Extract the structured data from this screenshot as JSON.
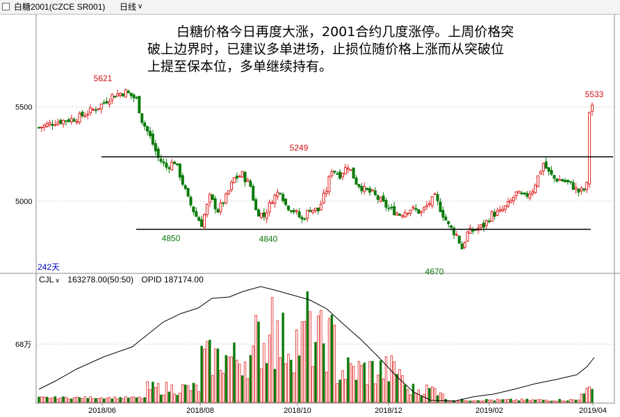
{
  "header": {
    "instrument": "白糖2001(CZCE SR001)",
    "period": "日线"
  },
  "annotation": {
    "lines": [
      "白糖价格今日再度大涨，2001合约几度涨停。上周价格突",
      "破上边界时，已建议多单进场，止损位随价格上涨而从突破位",
      "上提至保本位，多单继续持有。"
    ]
  },
  "price_panel": {
    "days_label": "242天"
  },
  "volume_panel": {
    "indicator": "CJL",
    "value": "163278.00(50:50)",
    "opid": "OPID 187174.00"
  },
  "colors": {
    "up": "#e02020",
    "down": "#0a7a0a",
    "label_red": "#d01010",
    "label_green": "#0a7a0a"
  },
  "chart_data": [
    {
      "type": "candlestick",
      "y_ticks": [
        5000,
        5500
      ],
      "ylim": [
        4620,
        5990
      ],
      "x_ticks": [
        "2018/06",
        "2018/08",
        "2018/10",
        "2018/12",
        "2019/02",
        "2019/04"
      ],
      "annotations": [
        {
          "text": "5621",
          "value": 5621,
          "kind": "high"
        },
        {
          "text": "5249",
          "value": 5249,
          "kind": "high"
        },
        {
          "text": "5533",
          "value": 5533,
          "kind": "high"
        },
        {
          "text": "4850",
          "value": 4850,
          "kind": "low"
        },
        {
          "text": "4840",
          "value": 4840,
          "kind": "low"
        },
        {
          "text": "4670",
          "value": 4670,
          "kind": "low"
        }
      ],
      "lines": [
        {
          "name": "upper",
          "value": 5235
        },
        {
          "name": "lower",
          "value": 4850
        }
      ]
    },
    {
      "type": "bar",
      "y_ticks_label": "68万",
      "series": [
        {
          "values": []
        },
        {
          "values": []
        }
      ]
    }
  ]
}
